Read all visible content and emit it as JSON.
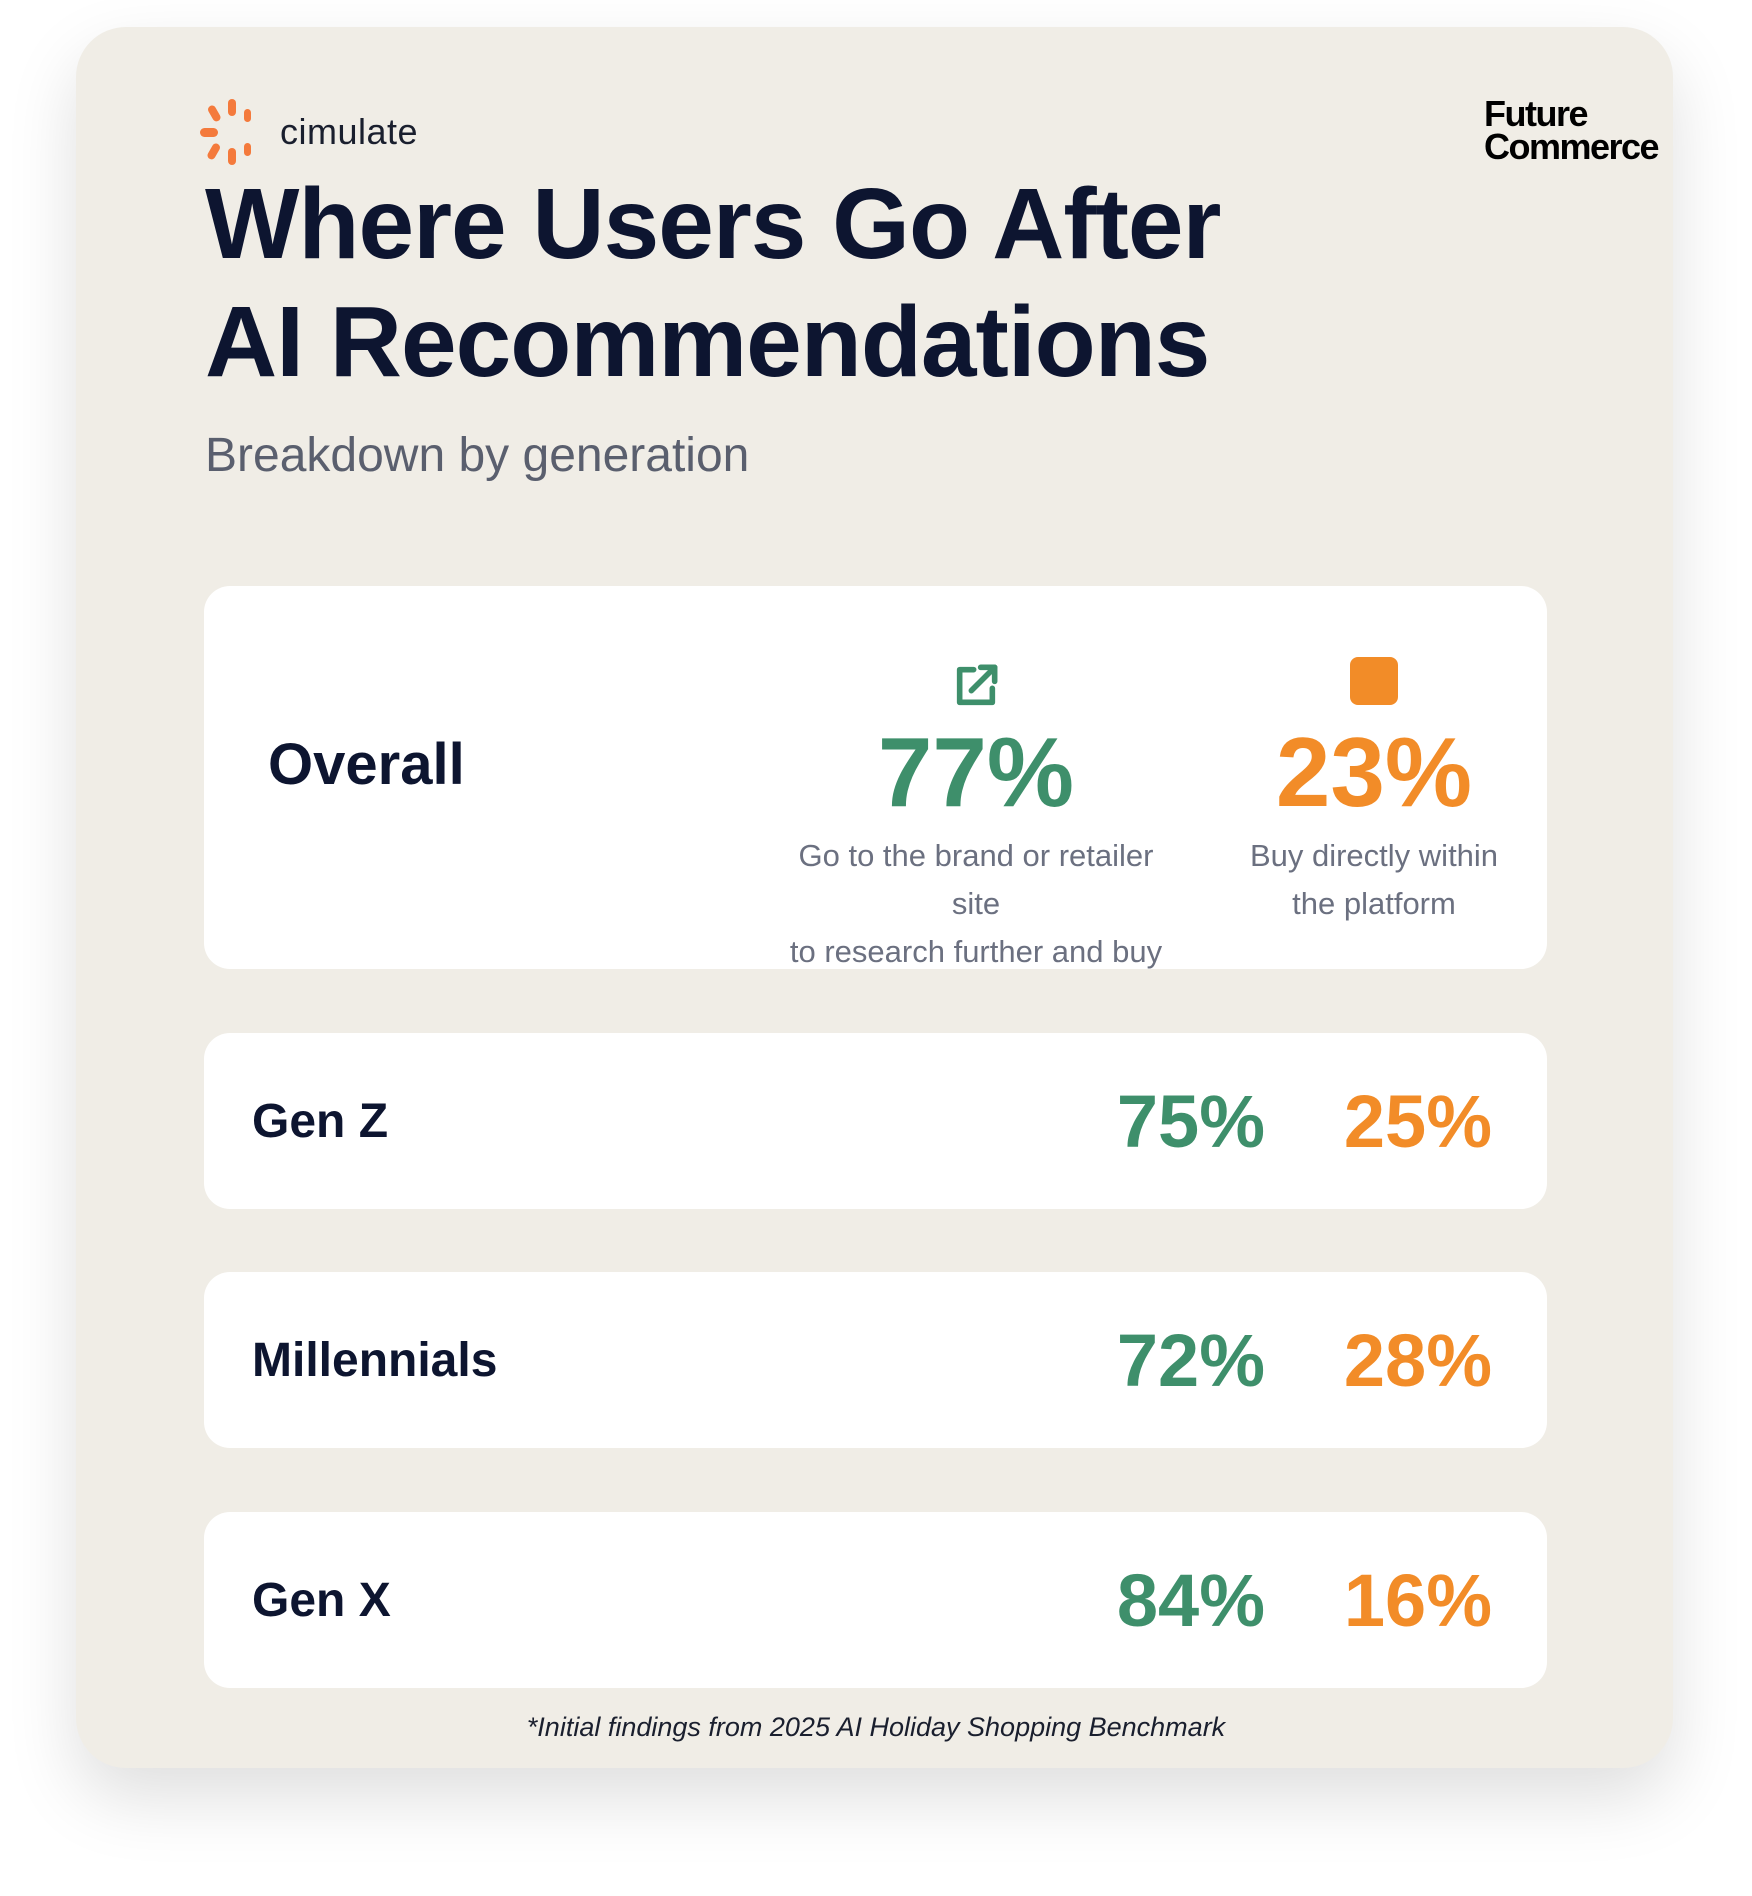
{
  "brand": {
    "left_logo": "cimulate",
    "right_logo": "Future Commerce"
  },
  "header": {
    "title_line1": "Where Users Go After",
    "title_line2": "AI Recommendations",
    "subtitle": "Breakdown by generation"
  },
  "colors": {
    "green": "#3E8F6B",
    "orange": "#F28C28",
    "navy": "#0D1530",
    "background": "#F0EDE6"
  },
  "overall": {
    "label": "Overall",
    "site": {
      "icon": "external-link-icon",
      "value": "77%",
      "desc_line1": "Go to the brand or retailer site",
      "desc_line2": "to research further and buy"
    },
    "platform": {
      "icon": "square-icon",
      "value": "23%",
      "desc_line1": "Buy directly within",
      "desc_line2": "the platform"
    }
  },
  "generations": [
    {
      "label": "Gen Z",
      "site": "75%",
      "platform": "25%"
    },
    {
      "label": "Millennials",
      "site": "72%",
      "platform": "28%"
    },
    {
      "label": "Gen X",
      "site": "84%",
      "platform": "16%"
    }
  ],
  "footnote": "*Initial findings from 2025 AI Holiday Shopping Benchmark"
}
